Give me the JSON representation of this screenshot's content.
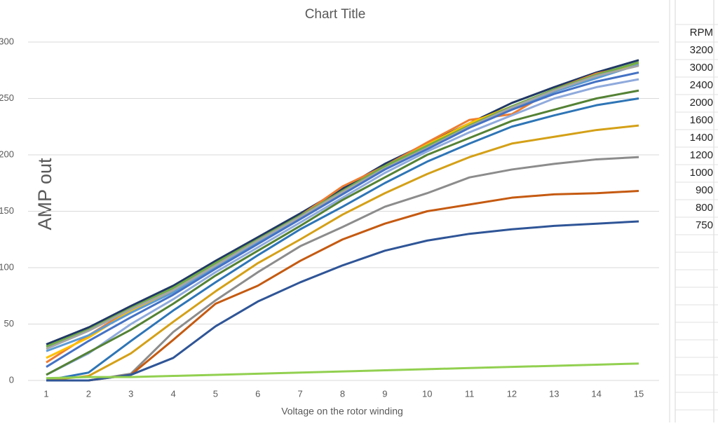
{
  "chart_data": {
    "type": "line",
    "title": "Chart Title",
    "x_label": "Voltage on the rotor winding",
    "y_label": "AMP out",
    "x": [
      1,
      2,
      3,
      4,
      5,
      6,
      7,
      8,
      9,
      10,
      11,
      12,
      13,
      14,
      15
    ],
    "xlim": [
      1,
      15
    ],
    "xticks": [
      1,
      2,
      3,
      4,
      5,
      6,
      7,
      8,
      9,
      10,
      11,
      12,
      13,
      14,
      15
    ],
    "ylim": [
      0,
      300
    ],
    "yticks": [
      0,
      50,
      100,
      150,
      200,
      250,
      300
    ],
    "grid": true,
    "series": [
      {
        "color": "#203864",
        "values": [
          32,
          47,
          66,
          84,
          106,
          127,
          148,
          170,
          192,
          210,
          228,
          246,
          260,
          273,
          284
        ]
      },
      {
        "color": "#ed7d31",
        "values": [
          16,
          40,
          63,
          80,
          102,
          124,
          146,
          172,
          190,
          211,
          231,
          236,
          258,
          272,
          280
        ]
      },
      {
        "color": "#ffc000",
        "values": [
          20,
          38,
          62,
          79,
          101,
          123,
          145,
          168,
          189,
          209,
          228,
          243,
          256,
          270,
          281
        ]
      },
      {
        "color": "#5b9bd5",
        "values": [
          26,
          40,
          60,
          78,
          100,
          122,
          144,
          166,
          187,
          207,
          226,
          241,
          256,
          268,
          280
        ]
      },
      {
        "color": "#70ad47",
        "values": [
          30,
          45,
          64,
          82,
          104,
          125,
          146,
          168,
          190,
          208,
          226,
          243,
          258,
          271,
          282
        ]
      },
      {
        "color": "#a5a5a5",
        "values": [
          28,
          44,
          63,
          80,
          102,
          124,
          145,
          167,
          188,
          206,
          225,
          242,
          257,
          270,
          279
        ]
      },
      {
        "color": "#4472c4",
        "values": [
          12,
          35,
          56,
          76,
          99,
          121,
          143,
          165,
          187,
          205,
          224,
          240,
          254,
          265,
          273
        ]
      },
      {
        "color": "#8faadc",
        "values": [
          5,
          24,
          50,
          72,
          96,
          118,
          140,
          162,
          184,
          203,
          220,
          235,
          250,
          260,
          267
        ]
      },
      {
        "color": "#548235",
        "values": [
          5,
          25,
          45,
          68,
          93,
          115,
          137,
          160,
          180,
          200,
          215,
          230,
          240,
          250,
          257
        ]
      },
      {
        "color": "#2e75b6",
        "values": [
          0,
          7,
          35,
          62,
          87,
          111,
          134,
          154,
          175,
          194,
          210,
          225,
          235,
          244,
          250
        ]
      },
      {
        "color": "#d4a017",
        "values": [
          0,
          4,
          24,
          52,
          79,
          104,
          125,
          147,
          166,
          183,
          198,
          210,
          216,
          222,
          226
        ]
      },
      {
        "color": "#8c8c8c",
        "values": [
          0,
          0,
          6,
          43,
          71,
          96,
          119,
          136,
          154,
          166,
          180,
          187,
          192,
          196,
          198
        ]
      },
      {
        "color": "#c55a11",
        "values": [
          0,
          0,
          5,
          36,
          68,
          84,
          106,
          125,
          139,
          150,
          156,
          162,
          165,
          166,
          168
        ]
      },
      {
        "color": "#2f5597",
        "values": [
          0,
          0,
          5,
          20,
          48,
          70,
          87,
          102,
          115,
          124,
          130,
          134,
          137,
          139,
          141
        ]
      },
      {
        "color": "#92d050",
        "values": [
          2,
          3,
          3,
          4,
          5,
          6,
          7,
          8,
          9,
          10,
          11,
          12,
          13,
          14,
          15
        ]
      }
    ]
  },
  "sheet": {
    "cells": [
      "RPM",
      "3200",
      "3000",
      "2400",
      "2000",
      "1600",
      "1400",
      "1200",
      "1000",
      "900",
      "800",
      "750"
    ]
  }
}
